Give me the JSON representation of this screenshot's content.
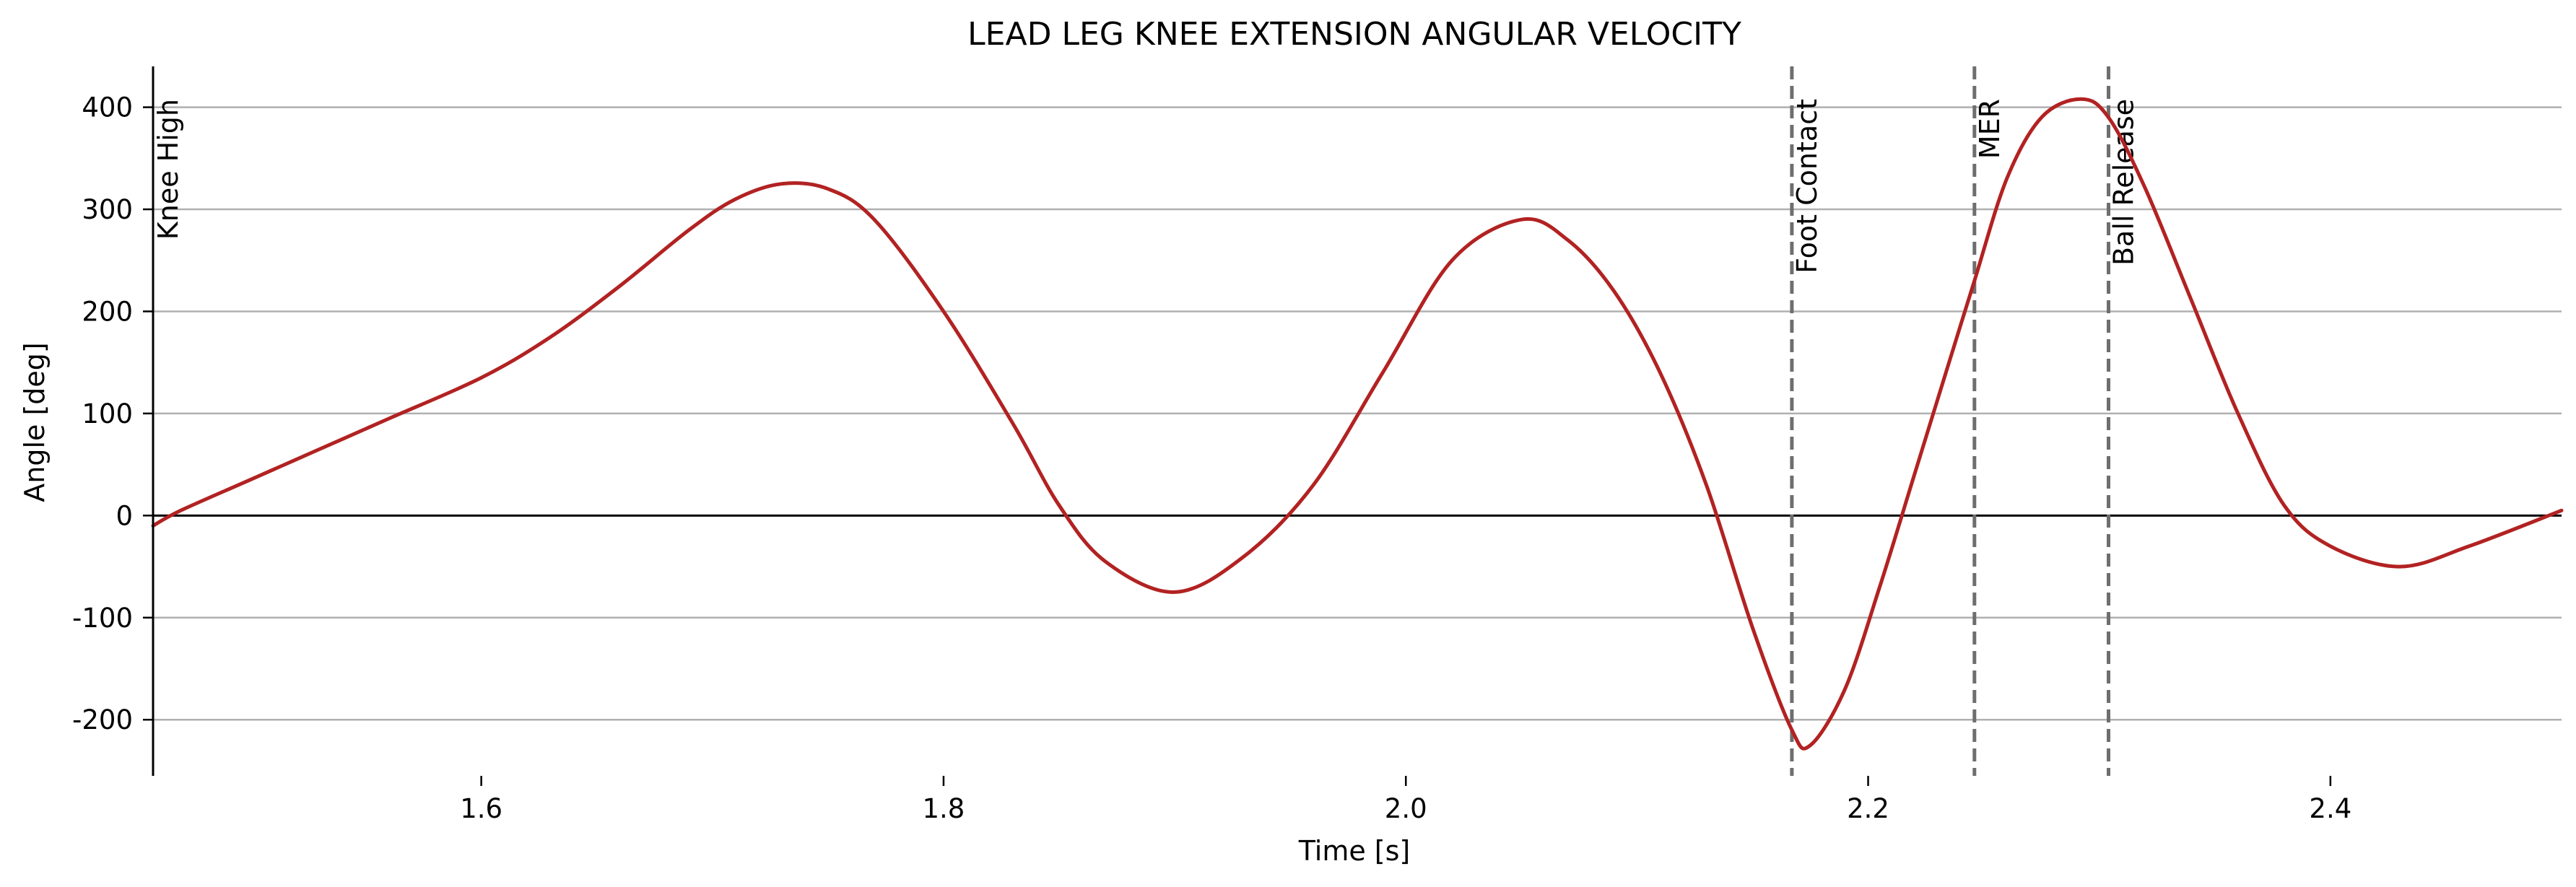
{
  "chart_data": {
    "type": "line",
    "title": "LEAD LEG KNEE EXTENSION ANGULAR VELOCITY",
    "xlabel": "Time [s]",
    "ylabel": "Angle [deg]",
    "xlim": [
      1.458,
      2.5
    ],
    "ylim": [
      -255,
      440
    ],
    "xticks": [
      1.6,
      1.8,
      2.0,
      2.2,
      2.4
    ],
    "xtick_labels": [
      "1.6",
      "1.8",
      "2.0",
      "2.2",
      "2.4"
    ],
    "yticks": [
      -200,
      -100,
      0,
      100,
      200,
      300,
      400
    ],
    "ytick_labels": [
      "-200",
      "-100",
      "0",
      "100",
      "200",
      "300",
      "400"
    ],
    "grid": "y",
    "line_color": "#b22222",
    "events": [
      {
        "label": "Knee High",
        "x": 1.458
      },
      {
        "label": "Foot Contact",
        "x": 2.167
      },
      {
        "label": "MER",
        "x": 2.246
      },
      {
        "label": "Ball Release",
        "x": 2.304
      }
    ],
    "series": [
      {
        "x": [
          1.458,
          1.47,
          1.5,
          1.53,
          1.56,
          1.6,
          1.63,
          1.66,
          1.69,
          1.71,
          1.73,
          1.75,
          1.77,
          1.8,
          1.83,
          1.85,
          1.87,
          1.9,
          1.93,
          1.96,
          1.99,
          2.02,
          2.05,
          2.07,
          2.09,
          2.11,
          2.13,
          2.15,
          2.167,
          2.175,
          2.19,
          2.205,
          2.22,
          2.235,
          2.246,
          2.26,
          2.275,
          2.292,
          2.304,
          2.32,
          2.34,
          2.36,
          2.38,
          2.4,
          2.43,
          2.46,
          2.5
        ],
        "y": [
          -10,
          5,
          35,
          65,
          95,
          135,
          175,
          225,
          280,
          310,
          325,
          320,
          290,
          200,
          90,
          10,
          -45,
          -75,
          -40,
          30,
          140,
          250,
          290,
          270,
          220,
          140,
          30,
          -110,
          -210,
          -225,
          -170,
          -70,
          40,
          150,
          230,
          330,
          390,
          408,
          390,
          320,
          210,
          100,
          10,
          -30,
          -50,
          -30,
          5
        ]
      }
    ]
  }
}
